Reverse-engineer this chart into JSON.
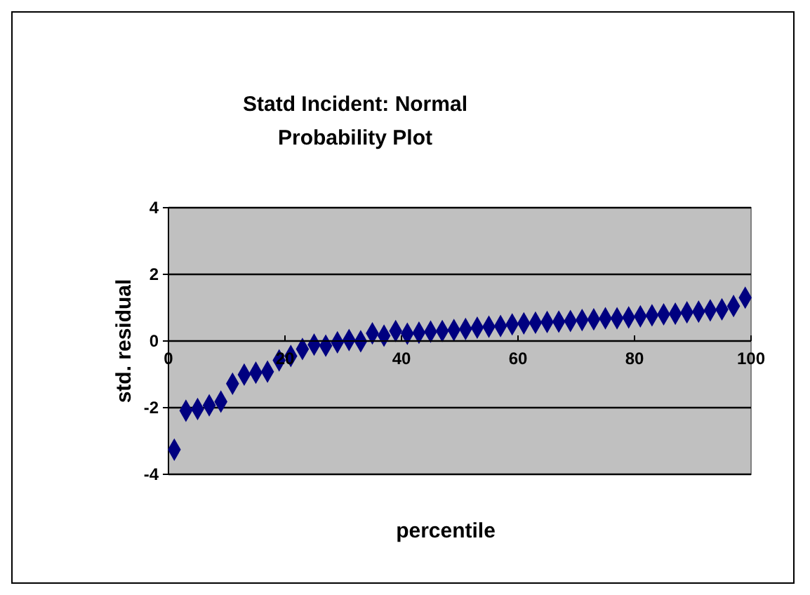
{
  "chart_data": {
    "type": "scatter",
    "title": "Statd Incident: Normal Probability Plot",
    "xlabel": "percentile",
    "ylabel": "std. residual",
    "marker": "diamond",
    "grid": "y",
    "xlim": [
      0,
      100
    ],
    "xticks": [
      0,
      20,
      40,
      60,
      80,
      100
    ],
    "ylim": [
      -4,
      4
    ],
    "yticks": [
      -4,
      -2,
      0,
      2,
      4
    ],
    "series": [
      {
        "color": "#000080",
        "x": [
          1,
          3,
          5,
          7,
          9,
          11,
          13,
          15,
          17,
          19,
          21,
          23,
          25,
          27,
          29,
          31,
          33,
          35,
          37,
          39,
          41,
          43,
          45,
          47,
          49,
          51,
          53,
          55,
          57,
          59,
          61,
          63,
          65,
          67,
          69,
          71,
          73,
          75,
          77,
          79,
          81,
          83,
          85,
          87,
          89,
          91,
          93,
          95,
          97,
          99
        ],
        "values": [
          -3.26,
          -2.09,
          -2.04,
          -1.93,
          -1.82,
          -1.28,
          -1.01,
          -0.95,
          -0.92,
          -0.58,
          -0.45,
          -0.24,
          -0.11,
          -0.14,
          -0.04,
          0.03,
          -0.01,
          0.23,
          0.16,
          0.3,
          0.22,
          0.25,
          0.28,
          0.3,
          0.33,
          0.36,
          0.4,
          0.43,
          0.45,
          0.5,
          0.53,
          0.55,
          0.57,
          0.58,
          0.6,
          0.63,
          0.65,
          0.68,
          0.68,
          0.71,
          0.74,
          0.77,
          0.8,
          0.82,
          0.86,
          0.88,
          0.92,
          0.95,
          1.05,
          1.3
        ]
      }
    ]
  }
}
